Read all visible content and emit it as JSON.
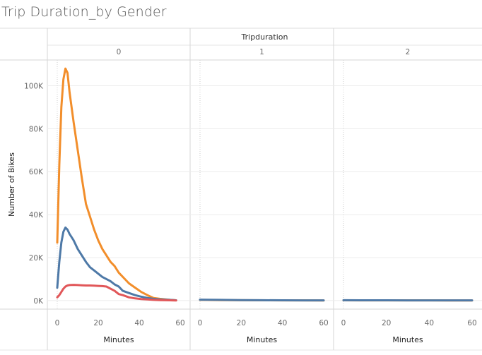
{
  "page": {
    "title": "Trip Duration_by Gender"
  },
  "chart_data": {
    "type": "line",
    "column_header": "Tripduration",
    "panels": [
      {
        "label": "0",
        "x": [
          0,
          1,
          2,
          3,
          4,
          5,
          6,
          8,
          10,
          12,
          14,
          16,
          18,
          20,
          22,
          24,
          26,
          28,
          30,
          32,
          35,
          38,
          41,
          44,
          47,
          50,
          55,
          58
        ],
        "series": [
          {
            "color": "#F28E2B",
            "values": [
              27000,
              63000,
              90000,
              103000,
              108000,
              106000,
              97000,
              83000,
              70000,
              57000,
              45000,
              39000,
              33000,
              28000,
              24000,
              21000,
              18000,
              16000,
              13000,
              11000,
              8000,
              6000,
              4000,
              2500,
              1200,
              800,
              300,
              100
            ]
          },
          {
            "color": "#4E79A7",
            "values": [
              6000,
              18000,
              27000,
              32000,
              34000,
              33000,
              31000,
              28000,
              24000,
              21000,
              18000,
              15500,
              14000,
              12500,
              11000,
              10000,
              9000,
              7500,
              6500,
              4500,
              3500,
              2500,
              1800,
              1200,
              800,
              500,
              300,
              100
            ]
          },
          {
            "color": "#E15759",
            "values": [
              1500,
              2500,
              4000,
              5500,
              6500,
              7000,
              7200,
              7300,
              7200,
              7100,
              7000,
              7000,
              6900,
              6800,
              6700,
              6500,
              5500,
              4500,
              3000,
              2500,
              1500,
              1000,
              700,
              500,
              300,
              200,
              100,
              50
            ]
          }
        ]
      },
      {
        "label": "1",
        "x": [
          0,
          10,
          20,
          30,
          40,
          50,
          60
        ],
        "series": [
          {
            "color": "#F28E2B",
            "values": [
              300,
              200,
              150,
              100,
              80,
              60,
              40
            ]
          },
          {
            "color": "#4E79A7",
            "values": [
              400,
              300,
              200,
              150,
              100,
              80,
              60
            ]
          }
        ]
      },
      {
        "label": "2",
        "x": [
          0,
          10,
          20,
          30,
          40,
          50,
          60
        ],
        "series": [
          {
            "color": "#F28E2B",
            "values": [
              100,
              90,
              80,
              70,
              60,
              50,
              40
            ]
          },
          {
            "color": "#4E79A7",
            "values": [
              150,
              120,
              100,
              90,
              80,
              70,
              60
            ]
          }
        ]
      }
    ],
    "xlabel": "Minutes",
    "ylabel": "Number of Bikes",
    "x_ticks": [
      "0",
      "20",
      "40",
      "60"
    ],
    "x_tick_values": [
      0,
      20,
      40,
      60
    ],
    "y_ticks": [
      "0K",
      "20K",
      "40K",
      "60K",
      "80K",
      "100K"
    ],
    "y_tick_values": [
      0,
      20000,
      40000,
      60000,
      80000,
      100000
    ],
    "xlim": [
      0,
      60
    ],
    "ylim": [
      -4000,
      112000
    ],
    "grid": true,
    "legend": "none"
  }
}
